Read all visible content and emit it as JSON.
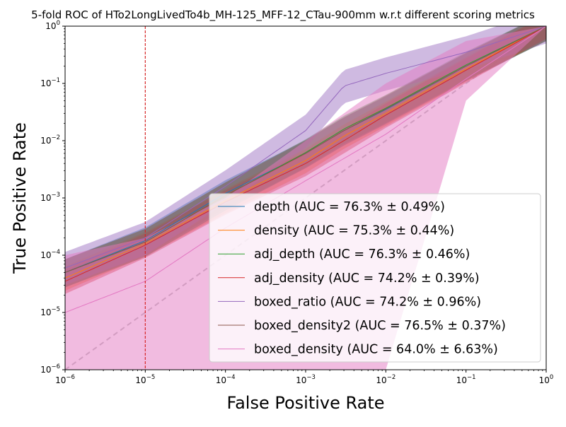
{
  "chart_data": {
    "type": "line",
    "title": "5-fold ROC of HTo2LongLivedTo4b_MH-125_MFF-12_CTau-900mm w.r.t different scoring metrics",
    "xlabel": "False Positive Rate",
    "ylabel": "True Positive Rate",
    "xscale": "log",
    "yscale": "log",
    "xlim": [
      1e-06,
      1
    ],
    "ylim": [
      1e-06,
      1
    ],
    "x_ticks": [
      {
        "value": 1e-06,
        "base": "10",
        "exp": "−6"
      },
      {
        "value": 1e-05,
        "base": "10",
        "exp": "−5"
      },
      {
        "value": 0.0001,
        "base": "10",
        "exp": "−4"
      },
      {
        "value": 0.001,
        "base": "10",
        "exp": "−3"
      },
      {
        "value": 0.01,
        "base": "10",
        "exp": "−2"
      },
      {
        "value": 0.1,
        "base": "10",
        "exp": "−1"
      },
      {
        "value": 1,
        "base": "10",
        "exp": "0"
      }
    ],
    "y_ticks": [
      {
        "value": 1e-06,
        "base": "10",
        "exp": "−6"
      },
      {
        "value": 1e-05,
        "base": "10",
        "exp": "−5"
      },
      {
        "value": 0.0001,
        "base": "10",
        "exp": "−4"
      },
      {
        "value": 0.001,
        "base": "10",
        "exp": "−3"
      },
      {
        "value": 0.01,
        "base": "10",
        "exp": "−2"
      },
      {
        "value": 0.1,
        "base": "10",
        "exp": "−1"
      },
      {
        "value": 1,
        "base": "10",
        "exp": "0"
      }
    ],
    "legend_position": "lower-right",
    "reference_line": {
      "x": 1e-05,
      "color": "#d62728",
      "style": "dashed"
    },
    "diagonal": {
      "color": "#c0c0c0",
      "style": "dashed"
    },
    "series": [
      {
        "name": "depth (AUC = 76.3% ± 0.49%)",
        "color": "#1f77b4",
        "x": [
          1e-06,
          1e-05,
          0.0001,
          0.001,
          0.003,
          0.01,
          0.1,
          1
        ],
        "y": [
          5e-05,
          0.00018,
          0.0012,
          0.006,
          0.015,
          0.035,
          0.2,
          1
        ],
        "band": [
          0.55,
          1.7
        ]
      },
      {
        "name": "density (AUC = 75.3% ± 0.44%)",
        "color": "#ff7f0e",
        "x": [
          1e-06,
          1e-05,
          0.0001,
          0.001,
          0.003,
          0.01,
          0.1,
          1
        ],
        "y": [
          4e-05,
          0.00016,
          0.0009,
          0.0045,
          0.012,
          0.03,
          0.18,
          1
        ],
        "band": [
          0.6,
          1.6
        ]
      },
      {
        "name": "adj_depth (AUC = 76.3% ± 0.46%)",
        "color": "#2ca02c",
        "x": [
          1e-06,
          1e-05,
          0.0001,
          0.001,
          0.003,
          0.01,
          0.1,
          1
        ],
        "y": [
          5e-05,
          0.00017,
          0.0011,
          0.0062,
          0.016,
          0.037,
          0.21,
          1
        ],
        "band": [
          0.55,
          1.7
        ]
      },
      {
        "name": "adj_density (AUC = 74.2% ± 0.39%)",
        "color": "#d62728",
        "x": [
          1e-06,
          1e-05,
          0.0001,
          0.001,
          0.003,
          0.01,
          0.1,
          1
        ],
        "y": [
          3.5e-05,
          0.00015,
          0.00085,
          0.004,
          0.01,
          0.028,
          0.17,
          1
        ],
        "band": [
          0.6,
          1.6
        ]
      },
      {
        "name": "boxed_ratio (AUC = 74.2% ± 0.96%)",
        "color": "#9467bd",
        "x": [
          1e-06,
          1e-05,
          0.0001,
          0.001,
          0.003,
          0.01,
          0.1,
          1
        ],
        "y": [
          6e-05,
          0.0002,
          0.0016,
          0.015,
          0.09,
          0.15,
          0.35,
          1
        ],
        "band": [
          0.5,
          1.9
        ]
      },
      {
        "name": "boxed_density2 (AUC = 76.5% ± 0.37%)",
        "color": "#8c564b",
        "x": [
          1e-06,
          1e-05,
          0.0001,
          0.001,
          0.003,
          0.01,
          0.1,
          1
        ],
        "y": [
          5e-05,
          0.00017,
          0.0011,
          0.006,
          0.015,
          0.036,
          0.2,
          1
        ],
        "band": [
          0.55,
          1.7
        ]
      },
      {
        "name": "boxed_density (AUC = 64.0% ± 6.63%)",
        "color": "#e377c2",
        "x": [
          1e-06,
          1e-05,
          0.0001,
          0.001,
          0.01,
          0.1,
          1
        ],
        "y": [
          1e-05,
          3.5e-05,
          0.0003,
          0.002,
          0.013,
          0.12,
          1
        ],
        "band_lower": [
          1e-06,
          1e-06,
          1e-06,
          1e-06,
          1e-06,
          0.05,
          1
        ],
        "band_upper": [
          0.0001,
          0.0002,
          0.001,
          0.01,
          0.1,
          0.55,
          1
        ]
      }
    ]
  }
}
